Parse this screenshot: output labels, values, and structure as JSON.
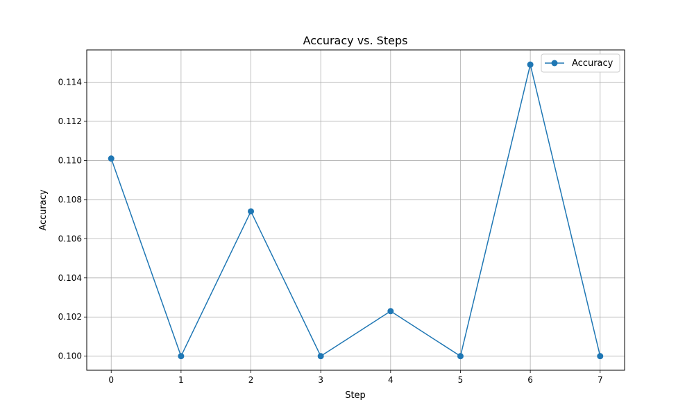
{
  "chart_data": {
    "type": "line",
    "title": "Accuracy vs. Steps",
    "xlabel": "Step",
    "ylabel": "Accuracy",
    "x": [
      0,
      1,
      2,
      3,
      4,
      5,
      6,
      7
    ],
    "xlim": [
      -0.35,
      7.35
    ],
    "ylim": [
      0.09928,
      0.11565
    ],
    "xticks": [
      "0",
      "1",
      "2",
      "3",
      "4",
      "5",
      "6",
      "7"
    ],
    "yticks": [
      "0.100",
      "0.102",
      "0.104",
      "0.106",
      "0.108",
      "0.110",
      "0.112",
      "0.114"
    ],
    "grid": true,
    "legend_position": "top-right",
    "series": [
      {
        "name": "Accuracy",
        "color": "#1f77b4",
        "marker": "circle",
        "values": [
          0.1101,
          0.1,
          0.1074,
          0.1,
          0.1023,
          0.1,
          0.1149,
          0.1
        ]
      }
    ]
  }
}
